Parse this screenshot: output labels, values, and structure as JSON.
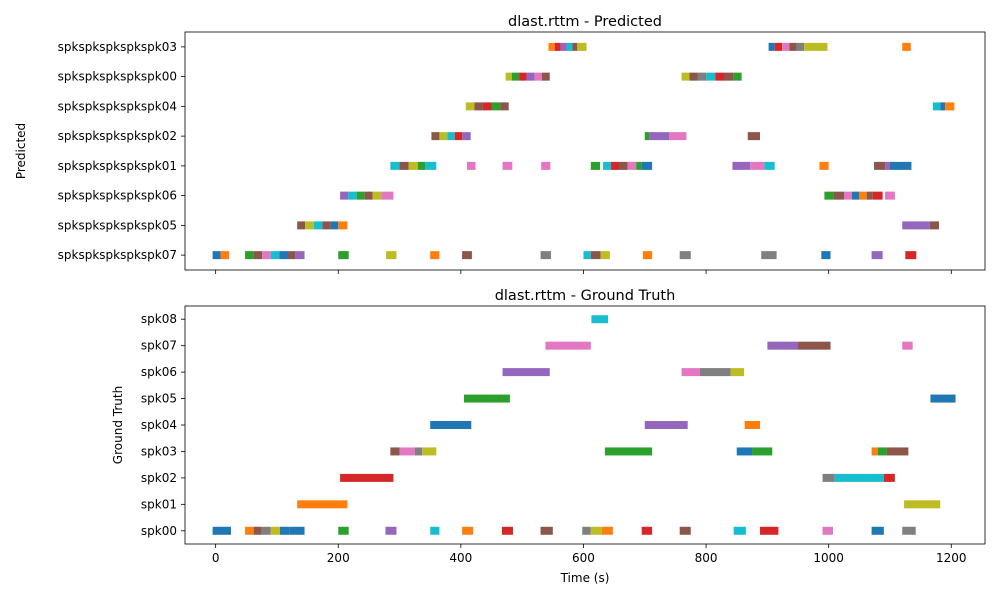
{
  "palette": [
    "#1f77b4",
    "#ff7f0e",
    "#2ca02c",
    "#d62728",
    "#9467bd",
    "#8c564b",
    "#e377c2",
    "#7f7f7f",
    "#bcbd22",
    "#17becf"
  ],
  "chart_data": [
    {
      "type": "timeline",
      "title": "dlast.rttm - Predicted",
      "ylabel": "Predicted",
      "xlabel": "",
      "xlim": [
        -50,
        1255
      ],
      "xticks": [
        0,
        200,
        400,
        600,
        800,
        1000,
        1200
      ],
      "show_tick_labels": false,
      "rows": [
        "spkspkspkspkspk07",
        "spkspkspkspkspk05",
        "spkspkspkspkspk06",
        "spkspkspkspkspk01",
        "spkspkspkspkspk02",
        "spkspkspkspkspk04",
        "spkspkspkspkspk00",
        "spkspkspkspkspk03"
      ],
      "segments": [
        {
          "row": 7,
          "start": 543,
          "end": 553,
          "color": 1
        },
        {
          "row": 7,
          "start": 553,
          "end": 563,
          "color": 3
        },
        {
          "row": 7,
          "start": 563,
          "end": 573,
          "color": 4
        },
        {
          "row": 7,
          "start": 573,
          "end": 582,
          "color": 9
        },
        {
          "row": 7,
          "start": 582,
          "end": 590,
          "color": 5
        },
        {
          "row": 7,
          "start": 590,
          "end": 605,
          "color": 8
        },
        {
          "row": 7,
          "start": 902,
          "end": 912,
          "color": 0
        },
        {
          "row": 7,
          "start": 912,
          "end": 924,
          "color": 3
        },
        {
          "row": 7,
          "start": 924,
          "end": 936,
          "color": 6
        },
        {
          "row": 7,
          "start": 936,
          "end": 948,
          "color": 5
        },
        {
          "row": 7,
          "start": 948,
          "end": 960,
          "color": 7
        },
        {
          "row": 7,
          "start": 960,
          "end": 998,
          "color": 8
        },
        {
          "row": 7,
          "start": 1120,
          "end": 1134,
          "color": 1
        },
        {
          "row": 6,
          "start": 473,
          "end": 483,
          "color": 8
        },
        {
          "row": 6,
          "start": 483,
          "end": 495,
          "color": 2
        },
        {
          "row": 6,
          "start": 495,
          "end": 507,
          "color": 3
        },
        {
          "row": 6,
          "start": 507,
          "end": 520,
          "color": 4
        },
        {
          "row": 6,
          "start": 520,
          "end": 532,
          "color": 6
        },
        {
          "row": 6,
          "start": 532,
          "end": 545,
          "color": 5
        },
        {
          "row": 6,
          "start": 760,
          "end": 773,
          "color": 8
        },
        {
          "row": 6,
          "start": 773,
          "end": 786,
          "color": 5
        },
        {
          "row": 6,
          "start": 786,
          "end": 800,
          "color": 7
        },
        {
          "row": 6,
          "start": 800,
          "end": 815,
          "color": 9
        },
        {
          "row": 6,
          "start": 815,
          "end": 830,
          "color": 3
        },
        {
          "row": 6,
          "start": 830,
          "end": 845,
          "color": 5
        },
        {
          "row": 6,
          "start": 845,
          "end": 858,
          "color": 2
        },
        {
          "row": 5,
          "start": 408,
          "end": 422,
          "color": 8
        },
        {
          "row": 5,
          "start": 422,
          "end": 436,
          "color": 5
        },
        {
          "row": 5,
          "start": 436,
          "end": 450,
          "color": 3
        },
        {
          "row": 5,
          "start": 450,
          "end": 464,
          "color": 2
        },
        {
          "row": 5,
          "start": 464,
          "end": 478,
          "color": 5
        },
        {
          "row": 5,
          "start": 1170,
          "end": 1182,
          "color": 9
        },
        {
          "row": 5,
          "start": 1182,
          "end": 1190,
          "color": 0
        },
        {
          "row": 5,
          "start": 1190,
          "end": 1205,
          "color": 1
        },
        {
          "row": 4,
          "start": 352,
          "end": 365,
          "color": 5
        },
        {
          "row": 4,
          "start": 365,
          "end": 378,
          "color": 8
        },
        {
          "row": 4,
          "start": 378,
          "end": 390,
          "color": 9
        },
        {
          "row": 4,
          "start": 390,
          "end": 402,
          "color": 3
        },
        {
          "row": 4,
          "start": 402,
          "end": 416,
          "color": 4
        },
        {
          "row": 4,
          "start": 700,
          "end": 707,
          "color": 2
        },
        {
          "row": 4,
          "start": 707,
          "end": 720,
          "color": 4
        },
        {
          "row": 4,
          "start": 720,
          "end": 740,
          "color": 4
        },
        {
          "row": 4,
          "start": 740,
          "end": 768,
          "color": 6
        },
        {
          "row": 4,
          "start": 868,
          "end": 888,
          "color": 5
        },
        {
          "row": 3,
          "start": 285,
          "end": 300,
          "color": 9
        },
        {
          "row": 3,
          "start": 300,
          "end": 315,
          "color": 5
        },
        {
          "row": 3,
          "start": 315,
          "end": 330,
          "color": 8
        },
        {
          "row": 3,
          "start": 330,
          "end": 342,
          "color": 2
        },
        {
          "row": 3,
          "start": 342,
          "end": 360,
          "color": 9
        },
        {
          "row": 3,
          "start": 410,
          "end": 424,
          "color": 6
        },
        {
          "row": 3,
          "start": 468,
          "end": 484,
          "color": 6
        },
        {
          "row": 3,
          "start": 531,
          "end": 546,
          "color": 6
        },
        {
          "row": 3,
          "start": 612,
          "end": 627,
          "color": 2
        },
        {
          "row": 3,
          "start": 632,
          "end": 645,
          "color": 9
        },
        {
          "row": 3,
          "start": 645,
          "end": 658,
          "color": 3
        },
        {
          "row": 3,
          "start": 658,
          "end": 672,
          "color": 5
        },
        {
          "row": 3,
          "start": 672,
          "end": 686,
          "color": 6
        },
        {
          "row": 3,
          "start": 686,
          "end": 695,
          "color": 2
        },
        {
          "row": 3,
          "start": 695,
          "end": 712,
          "color": 0
        },
        {
          "row": 3,
          "start": 843,
          "end": 872,
          "color": 4
        },
        {
          "row": 3,
          "start": 872,
          "end": 895,
          "color": 6
        },
        {
          "row": 3,
          "start": 895,
          "end": 912,
          "color": 9
        },
        {
          "row": 3,
          "start": 985,
          "end": 1000,
          "color": 1
        },
        {
          "row": 3,
          "start": 1074,
          "end": 1092,
          "color": 5
        },
        {
          "row": 3,
          "start": 1092,
          "end": 1100,
          "color": 4
        },
        {
          "row": 3,
          "start": 1100,
          "end": 1135,
          "color": 0
        },
        {
          "row": 2,
          "start": 203,
          "end": 216,
          "color": 4
        },
        {
          "row": 2,
          "start": 216,
          "end": 230,
          "color": 9
        },
        {
          "row": 2,
          "start": 230,
          "end": 243,
          "color": 2
        },
        {
          "row": 2,
          "start": 243,
          "end": 256,
          "color": 5
        },
        {
          "row": 2,
          "start": 256,
          "end": 270,
          "color": 8
        },
        {
          "row": 2,
          "start": 270,
          "end": 290,
          "color": 6
        },
        {
          "row": 2,
          "start": 993,
          "end": 1008,
          "color": 2
        },
        {
          "row": 2,
          "start": 1008,
          "end": 1025,
          "color": 5
        },
        {
          "row": 2,
          "start": 1025,
          "end": 1038,
          "color": 6
        },
        {
          "row": 2,
          "start": 1038,
          "end": 1050,
          "color": 0
        },
        {
          "row": 2,
          "start": 1050,
          "end": 1062,
          "color": 1
        },
        {
          "row": 2,
          "start": 1062,
          "end": 1072,
          "color": 5
        },
        {
          "row": 2,
          "start": 1072,
          "end": 1088,
          "color": 3
        },
        {
          "row": 2,
          "start": 1092,
          "end": 1108,
          "color": 6
        },
        {
          "row": 1,
          "start": 133,
          "end": 146,
          "color": 5
        },
        {
          "row": 1,
          "start": 146,
          "end": 160,
          "color": 8
        },
        {
          "row": 1,
          "start": 160,
          "end": 174,
          "color": 9
        },
        {
          "row": 1,
          "start": 174,
          "end": 188,
          "color": 5
        },
        {
          "row": 1,
          "start": 188,
          "end": 200,
          "color": 0
        },
        {
          "row": 1,
          "start": 200,
          "end": 215,
          "color": 1
        },
        {
          "row": 1,
          "start": 1120,
          "end": 1165,
          "color": 4
        },
        {
          "row": 1,
          "start": 1165,
          "end": 1180,
          "color": 5
        },
        {
          "row": 0,
          "start": -5,
          "end": 8,
          "color": 0
        },
        {
          "row": 0,
          "start": 8,
          "end": 22,
          "color": 1
        },
        {
          "row": 0,
          "start": 48,
          "end": 62,
          "color": 2
        },
        {
          "row": 0,
          "start": 62,
          "end": 76,
          "color": 5
        },
        {
          "row": 0,
          "start": 76,
          "end": 90,
          "color": 6
        },
        {
          "row": 0,
          "start": 90,
          "end": 104,
          "color": 9
        },
        {
          "row": 0,
          "start": 104,
          "end": 118,
          "color": 0
        },
        {
          "row": 0,
          "start": 118,
          "end": 130,
          "color": 5
        },
        {
          "row": 0,
          "start": 130,
          "end": 145,
          "color": 4
        },
        {
          "row": 0,
          "start": 200,
          "end": 217,
          "color": 2
        },
        {
          "row": 0,
          "start": 278,
          "end": 295,
          "color": 8
        },
        {
          "row": 0,
          "start": 350,
          "end": 365,
          "color": 1
        },
        {
          "row": 0,
          "start": 402,
          "end": 418,
          "color": 5
        },
        {
          "row": 0,
          "start": 530,
          "end": 547,
          "color": 7
        },
        {
          "row": 0,
          "start": 600,
          "end": 612,
          "color": 9
        },
        {
          "row": 0,
          "start": 612,
          "end": 628,
          "color": 5
        },
        {
          "row": 0,
          "start": 628,
          "end": 643,
          "color": 8
        },
        {
          "row": 0,
          "start": 697,
          "end": 712,
          "color": 1
        },
        {
          "row": 0,
          "start": 757,
          "end": 775,
          "color": 7
        },
        {
          "row": 0,
          "start": 890,
          "end": 915,
          "color": 7
        },
        {
          "row": 0,
          "start": 988,
          "end": 1003,
          "color": 0
        },
        {
          "row": 0,
          "start": 1070,
          "end": 1088,
          "color": 4
        },
        {
          "row": 0,
          "start": 1125,
          "end": 1143,
          "color": 3
        }
      ]
    },
    {
      "type": "timeline",
      "title": "dlast.rttm - Ground Truth",
      "ylabel": "Ground Truth",
      "xlabel": "Time (s)",
      "xlim": [
        -50,
        1255
      ],
      "xticks": [
        0,
        200,
        400,
        600,
        800,
        1000,
        1200
      ],
      "show_tick_labels": true,
      "rows": [
        "spk00",
        "spk01",
        "spk02",
        "spk03",
        "spk04",
        "spk05",
        "spk06",
        "spk07",
        "spk08"
      ],
      "segments": [
        {
          "row": 8,
          "start": 613,
          "end": 640,
          "color": 9
        },
        {
          "row": 7,
          "start": 538,
          "end": 612,
          "color": 6
        },
        {
          "row": 7,
          "start": 900,
          "end": 950,
          "color": 4
        },
        {
          "row": 7,
          "start": 950,
          "end": 1003,
          "color": 5
        },
        {
          "row": 7,
          "start": 1120,
          "end": 1137,
          "color": 6
        },
        {
          "row": 6,
          "start": 468,
          "end": 545,
          "color": 4
        },
        {
          "row": 6,
          "start": 760,
          "end": 790,
          "color": 6
        },
        {
          "row": 6,
          "start": 790,
          "end": 840,
          "color": 7
        },
        {
          "row": 6,
          "start": 840,
          "end": 862,
          "color": 8
        },
        {
          "row": 5,
          "start": 405,
          "end": 480,
          "color": 2
        },
        {
          "row": 5,
          "start": 1166,
          "end": 1207,
          "color": 0
        },
        {
          "row": 4,
          "start": 350,
          "end": 417,
          "color": 0
        },
        {
          "row": 4,
          "start": 700,
          "end": 770,
          "color": 4
        },
        {
          "row": 4,
          "start": 863,
          "end": 888,
          "color": 1
        },
        {
          "row": 3,
          "start": 285,
          "end": 300,
          "color": 5
        },
        {
          "row": 3,
          "start": 300,
          "end": 325,
          "color": 6
        },
        {
          "row": 3,
          "start": 325,
          "end": 337,
          "color": 7
        },
        {
          "row": 3,
          "start": 337,
          "end": 360,
          "color": 8
        },
        {
          "row": 3,
          "start": 635,
          "end": 712,
          "color": 2
        },
        {
          "row": 3,
          "start": 850,
          "end": 875,
          "color": 0
        },
        {
          "row": 3,
          "start": 875,
          "end": 908,
          "color": 2
        },
        {
          "row": 3,
          "start": 1070,
          "end": 1080,
          "color": 1
        },
        {
          "row": 3,
          "start": 1080,
          "end": 1095,
          "color": 2
        },
        {
          "row": 3,
          "start": 1095,
          "end": 1130,
          "color": 5
        },
        {
          "row": 2,
          "start": 203,
          "end": 290,
          "color": 3
        },
        {
          "row": 2,
          "start": 990,
          "end": 1010,
          "color": 7
        },
        {
          "row": 2,
          "start": 1010,
          "end": 1090,
          "color": 9
        },
        {
          "row": 2,
          "start": 1090,
          "end": 1108,
          "color": 3
        },
        {
          "row": 1,
          "start": 133,
          "end": 215,
          "color": 1
        },
        {
          "row": 1,
          "start": 1123,
          "end": 1182,
          "color": 8
        },
        {
          "row": 0,
          "start": -5,
          "end": 25,
          "color": 0
        },
        {
          "row": 0,
          "start": 48,
          "end": 62,
          "color": 1
        },
        {
          "row": 0,
          "start": 62,
          "end": 75,
          "color": 5
        },
        {
          "row": 0,
          "start": 75,
          "end": 90,
          "color": 7
        },
        {
          "row": 0,
          "start": 90,
          "end": 105,
          "color": 8
        },
        {
          "row": 0,
          "start": 105,
          "end": 120,
          "color": 0
        },
        {
          "row": 0,
          "start": 120,
          "end": 145,
          "color": 0
        },
        {
          "row": 0,
          "start": 200,
          "end": 217,
          "color": 2
        },
        {
          "row": 0,
          "start": 277,
          "end": 295,
          "color": 4
        },
        {
          "row": 0,
          "start": 350,
          "end": 365,
          "color": 9
        },
        {
          "row": 0,
          "start": 402,
          "end": 420,
          "color": 1
        },
        {
          "row": 0,
          "start": 467,
          "end": 485,
          "color": 3
        },
        {
          "row": 0,
          "start": 530,
          "end": 550,
          "color": 5
        },
        {
          "row": 0,
          "start": 598,
          "end": 612,
          "color": 7
        },
        {
          "row": 0,
          "start": 612,
          "end": 630,
          "color": 8
        },
        {
          "row": 0,
          "start": 630,
          "end": 648,
          "color": 1
        },
        {
          "row": 0,
          "start": 695,
          "end": 712,
          "color": 3
        },
        {
          "row": 0,
          "start": 757,
          "end": 775,
          "color": 5
        },
        {
          "row": 0,
          "start": 845,
          "end": 865,
          "color": 9
        },
        {
          "row": 0,
          "start": 888,
          "end": 918,
          "color": 3
        },
        {
          "row": 0,
          "start": 990,
          "end": 1007,
          "color": 6
        },
        {
          "row": 0,
          "start": 1070,
          "end": 1090,
          "color": 0
        },
        {
          "row": 0,
          "start": 1120,
          "end": 1142,
          "color": 7
        }
      ]
    }
  ]
}
